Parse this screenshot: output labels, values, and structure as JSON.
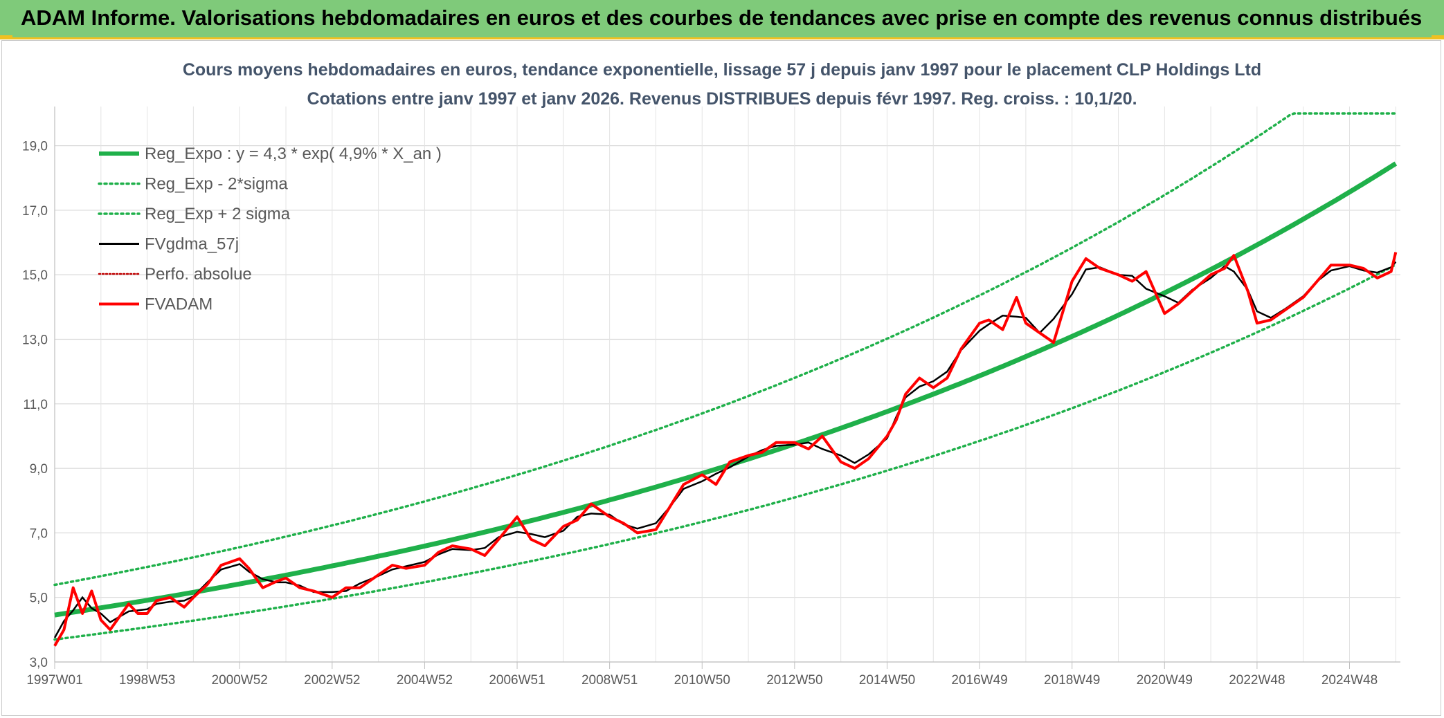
{
  "header": {
    "title": "ADAM Informe. Valorisations hebdomadaires en euros et des courbes de tendances avec prise en compte des revenus connus distribués"
  },
  "colors": {
    "header_bg": "#7fca7a",
    "trend": "#1fb04a",
    "band": "#1fb04a",
    "smoothed": "#000000",
    "price": "#ff0000",
    "perf": "#c00000"
  },
  "chart_data": {
    "type": "line",
    "title": "Cours moyens hebdomadaires en euros, tendance exponentielle, lissage 57 j depuis janv 1997 pour le placement CLP Holdings Ltd",
    "subtitle": "Cotations entre janv 1997 et janv 2026. Revenus DISTRIBUES depuis févr 1997. Reg. croiss. : 10,1/20.",
    "xlabel": "",
    "ylabel": "",
    "ylim": [
      3,
      20
    ],
    "xlim": [
      1997.0,
      2026.1
    ],
    "y_ticks": [
      "3,0",
      "5,0",
      "7,0",
      "9,0",
      "11,0",
      "13,0",
      "15,0",
      "17,0",
      "19,0"
    ],
    "x_ticks": [
      {
        "label": "1997W01",
        "year": 1997.0
      },
      {
        "label": "1998W53",
        "year": 1999.0
      },
      {
        "label": "2000W52",
        "year": 2001.0
      },
      {
        "label": "2002W52",
        "year": 2003.0
      },
      {
        "label": "2004W52",
        "year": 2005.0
      },
      {
        "label": "2006W51",
        "year": 2007.0
      },
      {
        "label": "2008W51",
        "year": 2009.0
      },
      {
        "label": "2010W50",
        "year": 2011.0
      },
      {
        "label": "2012W50",
        "year": 2013.0
      },
      {
        "label": "2014W50",
        "year": 2015.0
      },
      {
        "label": "2016W49",
        "year": 2017.0
      },
      {
        "label": "2018W49",
        "year": 2019.0
      },
      {
        "label": "2020W49",
        "year": 2021.0
      },
      {
        "label": "2022W48",
        "year": 2023.0
      },
      {
        "label": "2024W48",
        "year": 2025.0
      }
    ],
    "grid": true,
    "legend_position": "top-left",
    "series": [
      {
        "name": "Reg_Expo : y = 4,3 * exp( 4,9% *  X_an )",
        "kind": "trend",
        "a": 4.3,
        "r": 0.049
      },
      {
        "name": "Reg_Exp - 2*sigma",
        "kind": "band",
        "factor": 0.83
      },
      {
        "name": "Reg_Exp + 2 sigma",
        "kind": "band",
        "factor": 1.21,
        "cap": 20.0
      },
      {
        "name": "FVgdma_57j",
        "kind": "smoothed"
      },
      {
        "name": "Perfo. absolue",
        "kind": "perf"
      },
      {
        "name": "FVADAM",
        "kind": "price",
        "x": [
          1997.0,
          1997.2,
          1997.4,
          1997.6,
          1997.8,
          1998.0,
          1998.2,
          1998.4,
          1998.6,
          1998.8,
          1999.0,
          1999.2,
          1999.5,
          1999.8,
          2000.0,
          2000.3,
          2000.6,
          2001.0,
          2001.2,
          2001.5,
          2001.8,
          2002.0,
          2002.3,
          2002.6,
          2003.0,
          2003.3,
          2003.6,
          2004.0,
          2004.3,
          2004.6,
          2005.0,
          2005.3,
          2005.6,
          2006.0,
          2006.3,
          2006.6,
          2007.0,
          2007.3,
          2007.6,
          2008.0,
          2008.3,
          2008.6,
          2009.0,
          2009.3,
          2009.6,
          2010.0,
          2010.3,
          2010.6,
          2011.0,
          2011.3,
          2011.6,
          2012.0,
          2012.3,
          2012.6,
          2013.0,
          2013.3,
          2013.6,
          2014.0,
          2014.3,
          2014.6,
          2015.0,
          2015.2,
          2015.4,
          2015.7,
          2016.0,
          2016.3,
          2016.6,
          2017.0,
          2017.2,
          2017.5,
          2017.8,
          2018.0,
          2018.3,
          2018.6,
          2019.0,
          2019.3,
          2019.6,
          2020.0,
          2020.3,
          2020.6,
          2021.0,
          2021.3,
          2021.6,
          2022.0,
          2022.3,
          2022.5,
          2022.8,
          2023.0,
          2023.3,
          2023.6,
          2024.0,
          2024.3,
          2024.6,
          2025.0,
          2025.3,
          2025.6,
          2025.9,
          2026.0
        ],
        "values": [
          3.5,
          4.0,
          5.3,
          4.5,
          5.2,
          4.3,
          4.0,
          4.4,
          4.8,
          4.5,
          4.5,
          4.9,
          5.0,
          4.7,
          5.0,
          5.4,
          6.0,
          6.2,
          5.9,
          5.3,
          5.5,
          5.6,
          5.3,
          5.2,
          5.0,
          5.3,
          5.3,
          5.7,
          6.0,
          5.9,
          6.0,
          6.4,
          6.6,
          6.5,
          6.3,
          6.8,
          7.5,
          6.8,
          6.6,
          7.2,
          7.4,
          7.9,
          7.5,
          7.3,
          7.0,
          7.1,
          7.8,
          8.5,
          8.8,
          8.5,
          9.2,
          9.4,
          9.5,
          9.8,
          9.8,
          9.6,
          10.0,
          9.2,
          9.0,
          9.3,
          10.0,
          10.5,
          11.3,
          11.8,
          11.5,
          11.8,
          12.7,
          13.5,
          13.6,
          13.3,
          14.3,
          13.5,
          13.2,
          12.9,
          14.8,
          15.5,
          15.2,
          15.0,
          14.8,
          15.1,
          13.8,
          14.1,
          14.5,
          15.0,
          15.2,
          15.6,
          14.5,
          13.5,
          13.6,
          13.9,
          14.3,
          14.8,
          15.3,
          15.3,
          15.2,
          14.9,
          15.1,
          15.7
        ]
      }
    ]
  },
  "legend_icons": [
    "trend-line-icon",
    "band-dotted-icon",
    "band-dotted-icon",
    "smoothed-line-icon",
    "perf-dotted-icon",
    "price-line-icon"
  ]
}
